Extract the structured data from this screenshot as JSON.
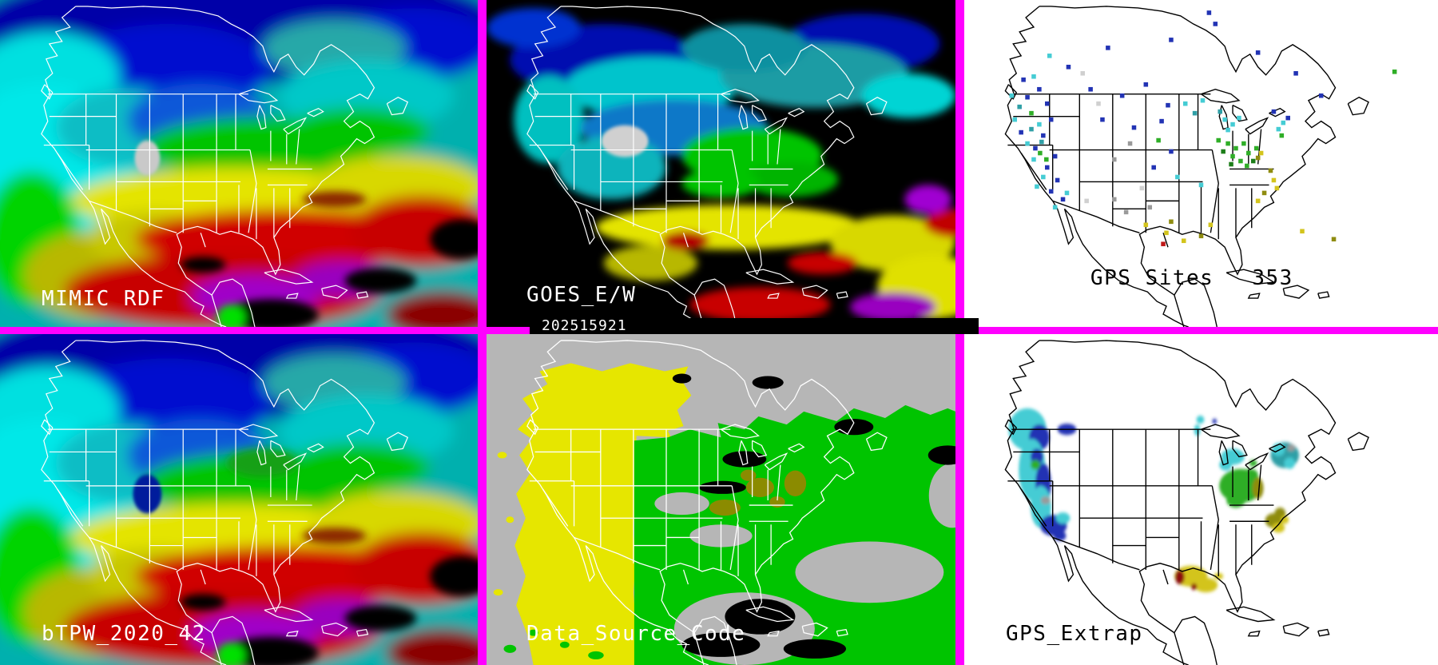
{
  "panels": {
    "mimic": {
      "label": "MIMIC RDF"
    },
    "goes": {
      "label": "GOES_E/W",
      "timestamp": "202515921"
    },
    "gps_sites": {
      "label": "GPS Sites",
      "count": "353"
    },
    "btpw": {
      "label": "bTPW_2020_42"
    },
    "data_source": {
      "label": "Data_Source_Code"
    },
    "gps_extrap": {
      "label": "GPS_Extrap"
    }
  },
  "colors": {
    "divider_magenta": "#ff00ff",
    "panel_dark_bg": "#000000",
    "panel_light_bg": "#ffffff",
    "label_white": "#ffffff",
    "label_black": "#000000",
    "tpw_navy": "#0008b0",
    "tpw_cyan": "#00e0e0",
    "tpw_teal": "#28a8a8",
    "tpw_green": "#00c400",
    "tpw_yellow": "#e4e400",
    "tpw_red": "#c80000",
    "tpw_purple": "#a000c8",
    "dsc_gray": "#b6b6b6",
    "dsc_yellow": "#e6e600",
    "dsc_green": "#00c400",
    "dsc_olive": "#8b8b00",
    "map_outline_dark": "#000000",
    "map_outline_light": "#ffffff"
  },
  "palette": {
    "n": "#2233b4",
    "c": "#45ccd4",
    "t": "#2f9fa6",
    "g": "#2fae27",
    "G": "#1d7e1a",
    "y": "#d3c41c",
    "o": "#8f8c10",
    "r": "#c01818",
    "R": "#8e1010",
    "s": "#d0d0d0",
    "a": "#9a9a9a"
  },
  "chart_data": [
    {
      "panel": "MIMIC RDF",
      "type": "heatmap",
      "description": "Full-color precipitable-water style raster over North America: dark blue across the north, cyan/teal Pacific, green and yellow bands across the central US, red and purple with black gaps across Mexico, the Gulf and the tropics; white coast/state outlines; white label lower left"
    },
    {
      "panel": "GOES_E/W",
      "type": "heatmap",
      "timestamp": "202515921",
      "description": "Same rainbow palette on black background with data only in patches: blue/cyan north and northwest, green midwest, yellow/red/purple south; gray patch over the southwest; black timestamp bar along the bottom edge"
    },
    {
      "panel": "GPS Sites",
      "type": "scatter",
      "site_count": 353,
      "description": "White map of North America with black outlines; small colored square markers (navy, cyan, teal, green, gray, yellow, olive, red) at GPS site locations, densest on the west coast and Ohio valley; black label 'GPS Sites 353' lower left"
    },
    {
      "panel": "bTPW_2020_42",
      "type": "heatmap",
      "description": "Nearly identical rainbow raster to MIMIC RDF panel with dark blue patch over the southwest and extra green over the upper midwest; white label lower left"
    },
    {
      "panel": "Data_Source_Code",
      "type": "categorical-map",
      "categories": [
        "gray",
        "yellow",
        "green",
        "olive",
        "black"
      ],
      "description": "Gray background; ragged yellow region covering the west with a hard vertical edge near one third of the panel width; green region covering the east and ocean; olive patches near the Great Lakes and gulf states; black patches over the Caribbean; white outlines; white label lower left"
    },
    {
      "panel": "GPS_Extrap",
      "type": "filled-map",
      "description": "White map of North America with black outlines; filled blobs: cyan and navy along the west coast, green over the Ohio valley, cyan over Michigan and New England, olive/yellow mid-Atlantic, yellow with dark red spots over the gulf coast, small cyan spots in Minnesota; black label lower left"
    }
  ],
  "gps_sites_dots": [
    [
      75,
      100,
      "n"
    ],
    [
      88,
      96,
      "c"
    ],
    [
      60,
      120,
      "c"
    ],
    [
      80,
      122,
      "n"
    ],
    [
      70,
      134,
      "t"
    ],
    [
      95,
      112,
      "n"
    ],
    [
      105,
      130,
      "n"
    ],
    [
      85,
      142,
      "g"
    ],
    [
      110,
      150,
      "n"
    ],
    [
      64,
      150,
      "c"
    ],
    [
      95,
      156,
      "c"
    ],
    [
      72,
      166,
      "n"
    ],
    [
      100,
      170,
      "n"
    ],
    [
      80,
      180,
      "c"
    ],
    [
      90,
      186,
      "n"
    ],
    [
      115,
      196,
      "n"
    ],
    [
      88,
      200,
      "c"
    ],
    [
      105,
      210,
      "n"
    ],
    [
      100,
      222,
      "c"
    ],
    [
      92,
      234,
      "c"
    ],
    [
      110,
      240,
      "n"
    ],
    [
      118,
      226,
      "n"
    ],
    [
      125,
      250,
      "n"
    ],
    [
      115,
      260,
      "c"
    ],
    [
      130,
      242,
      "c"
    ],
    [
      96,
      192,
      "g"
    ],
    [
      104,
      200,
      "g"
    ],
    [
      85,
      162,
      "t"
    ],
    [
      98,
      178,
      "t"
    ],
    [
      150,
      92,
      "s"
    ],
    [
      160,
      112,
      "n"
    ],
    [
      200,
      120,
      "n"
    ],
    [
      230,
      106,
      "n"
    ],
    [
      175,
      150,
      "n"
    ],
    [
      215,
      160,
      "n"
    ],
    [
      250,
      152,
      "n"
    ],
    [
      170,
      130,
      "s"
    ],
    [
      210,
      180,
      "a"
    ],
    [
      240,
      210,
      "n"
    ],
    [
      262,
      190,
      "n"
    ],
    [
      190,
      200,
      "a"
    ],
    [
      225,
      236,
      "s"
    ],
    [
      190,
      250,
      "a"
    ],
    [
      205,
      266,
      "a"
    ],
    [
      235,
      260,
      "a"
    ],
    [
      258,
      132,
      "n"
    ],
    [
      280,
      130,
      "c"
    ],
    [
      292,
      142,
      "t"
    ],
    [
      302,
      126,
      "c"
    ],
    [
      270,
      222,
      "c"
    ],
    [
      300,
      232,
      "c"
    ],
    [
      155,
      252,
      "s"
    ],
    [
      246,
      176,
      "g"
    ],
    [
      230,
      282,
      "y"
    ],
    [
      256,
      292,
      "y"
    ],
    [
      278,
      302,
      "y"
    ],
    [
      300,
      296,
      "o"
    ],
    [
      252,
      306,
      "r"
    ],
    [
      312,
      282,
      "y"
    ],
    [
      262,
      278,
      "o"
    ],
    [
      334,
      180,
      "g"
    ],
    [
      344,
      186,
      "g"
    ],
    [
      354,
      180,
      "g"
    ],
    [
      340,
      196,
      "g"
    ],
    [
      350,
      202,
      "g"
    ],
    [
      360,
      192,
      "g"
    ],
    [
      366,
      202,
      "G"
    ],
    [
      370,
      186,
      "g"
    ],
    [
      338,
      206,
      "G"
    ],
    [
      358,
      208,
      "g"
    ],
    [
      372,
      198,
      "o"
    ],
    [
      376,
      192,
      "y"
    ],
    [
      328,
      190,
      "G"
    ],
    [
      322,
      176,
      "g"
    ],
    [
      330,
      150,
      "c"
    ],
    [
      340,
      156,
      "c"
    ],
    [
      348,
      148,
      "c"
    ],
    [
      334,
      163,
      "c"
    ],
    [
      324,
      140,
      "t"
    ],
    [
      398,
      162,
      "c"
    ],
    [
      404,
      154,
      "c"
    ],
    [
      410,
      148,
      "n"
    ],
    [
      392,
      140,
      "n"
    ],
    [
      388,
      214,
      "o"
    ],
    [
      392,
      226,
      "y"
    ],
    [
      396,
      236,
      "y"
    ],
    [
      380,
      242,
      "o"
    ],
    [
      372,
      252,
      "y"
    ],
    [
      402,
      170,
      "g"
    ],
    [
      182,
      60,
      "n"
    ],
    [
      262,
      50,
      "n"
    ],
    [
      318,
      30,
      "n"
    ],
    [
      372,
      66,
      "n"
    ],
    [
      420,
      92,
      "n"
    ],
    [
      452,
      120,
      "n"
    ],
    [
      310,
      16,
      "n"
    ],
    [
      545,
      90,
      "g"
    ],
    [
      108,
      70,
      "c"
    ],
    [
      132,
      84,
      "n"
    ],
    [
      428,
      290,
      "y"
    ],
    [
      468,
      300,
      "o"
    ]
  ],
  "gps_extrap_regions": [
    [
      80,
      118,
      24,
      26,
      "c"
    ],
    [
      95,
      128,
      13,
      16,
      "n"
    ],
    [
      130,
      118,
      12,
      7,
      "n"
    ],
    [
      86,
      168,
      17,
      38,
      "c"
    ],
    [
      100,
      186,
      10,
      26,
      "n"
    ],
    [
      92,
      152,
      8,
      10,
      "n"
    ],
    [
      90,
      162,
      6,
      6,
      "g"
    ],
    [
      97,
      214,
      13,
      26,
      "c"
    ],
    [
      103,
      206,
      6,
      5,
      "a"
    ],
    [
      113,
      237,
      17,
      13,
      "n"
    ],
    [
      125,
      228,
      9,
      7,
      "c"
    ],
    [
      121,
      250,
      8,
      6,
      "n"
    ],
    [
      299,
      106,
      5,
      5,
      "c"
    ],
    [
      295,
      119,
      4,
      7,
      "c"
    ],
    [
      317,
      108,
      3,
      3,
      "n"
    ],
    [
      350,
      188,
      27,
      21,
      "g"
    ],
    [
      344,
      206,
      12,
      9,
      "g"
    ],
    [
      362,
      174,
      10,
      7,
      "g"
    ],
    [
      340,
      152,
      15,
      10,
      "c"
    ],
    [
      331,
      162,
      8,
      7,
      "c"
    ],
    [
      372,
      191,
      7,
      13,
      "o"
    ],
    [
      366,
      160,
      5,
      4,
      "g"
    ],
    [
      406,
      150,
      18,
      16,
      "t"
    ],
    [
      398,
      143,
      8,
      8,
      "c"
    ],
    [
      414,
      141,
      5,
      4,
      "a"
    ],
    [
      412,
      160,
      7,
      7,
      "c"
    ],
    [
      392,
      231,
      11,
      9,
      "o"
    ],
    [
      400,
      222,
      7,
      7,
      "o"
    ],
    [
      398,
      240,
      8,
      6,
      "y"
    ],
    [
      406,
      230,
      5,
      5,
      "y"
    ],
    [
      287,
      300,
      21,
      13,
      "y"
    ],
    [
      306,
      311,
      15,
      9,
      "y"
    ],
    [
      273,
      301,
      6,
      9,
      "R"
    ],
    [
      291,
      313,
      4,
      4,
      "R"
    ],
    [
      322,
      300,
      6,
      4,
      "y"
    ]
  ]
}
